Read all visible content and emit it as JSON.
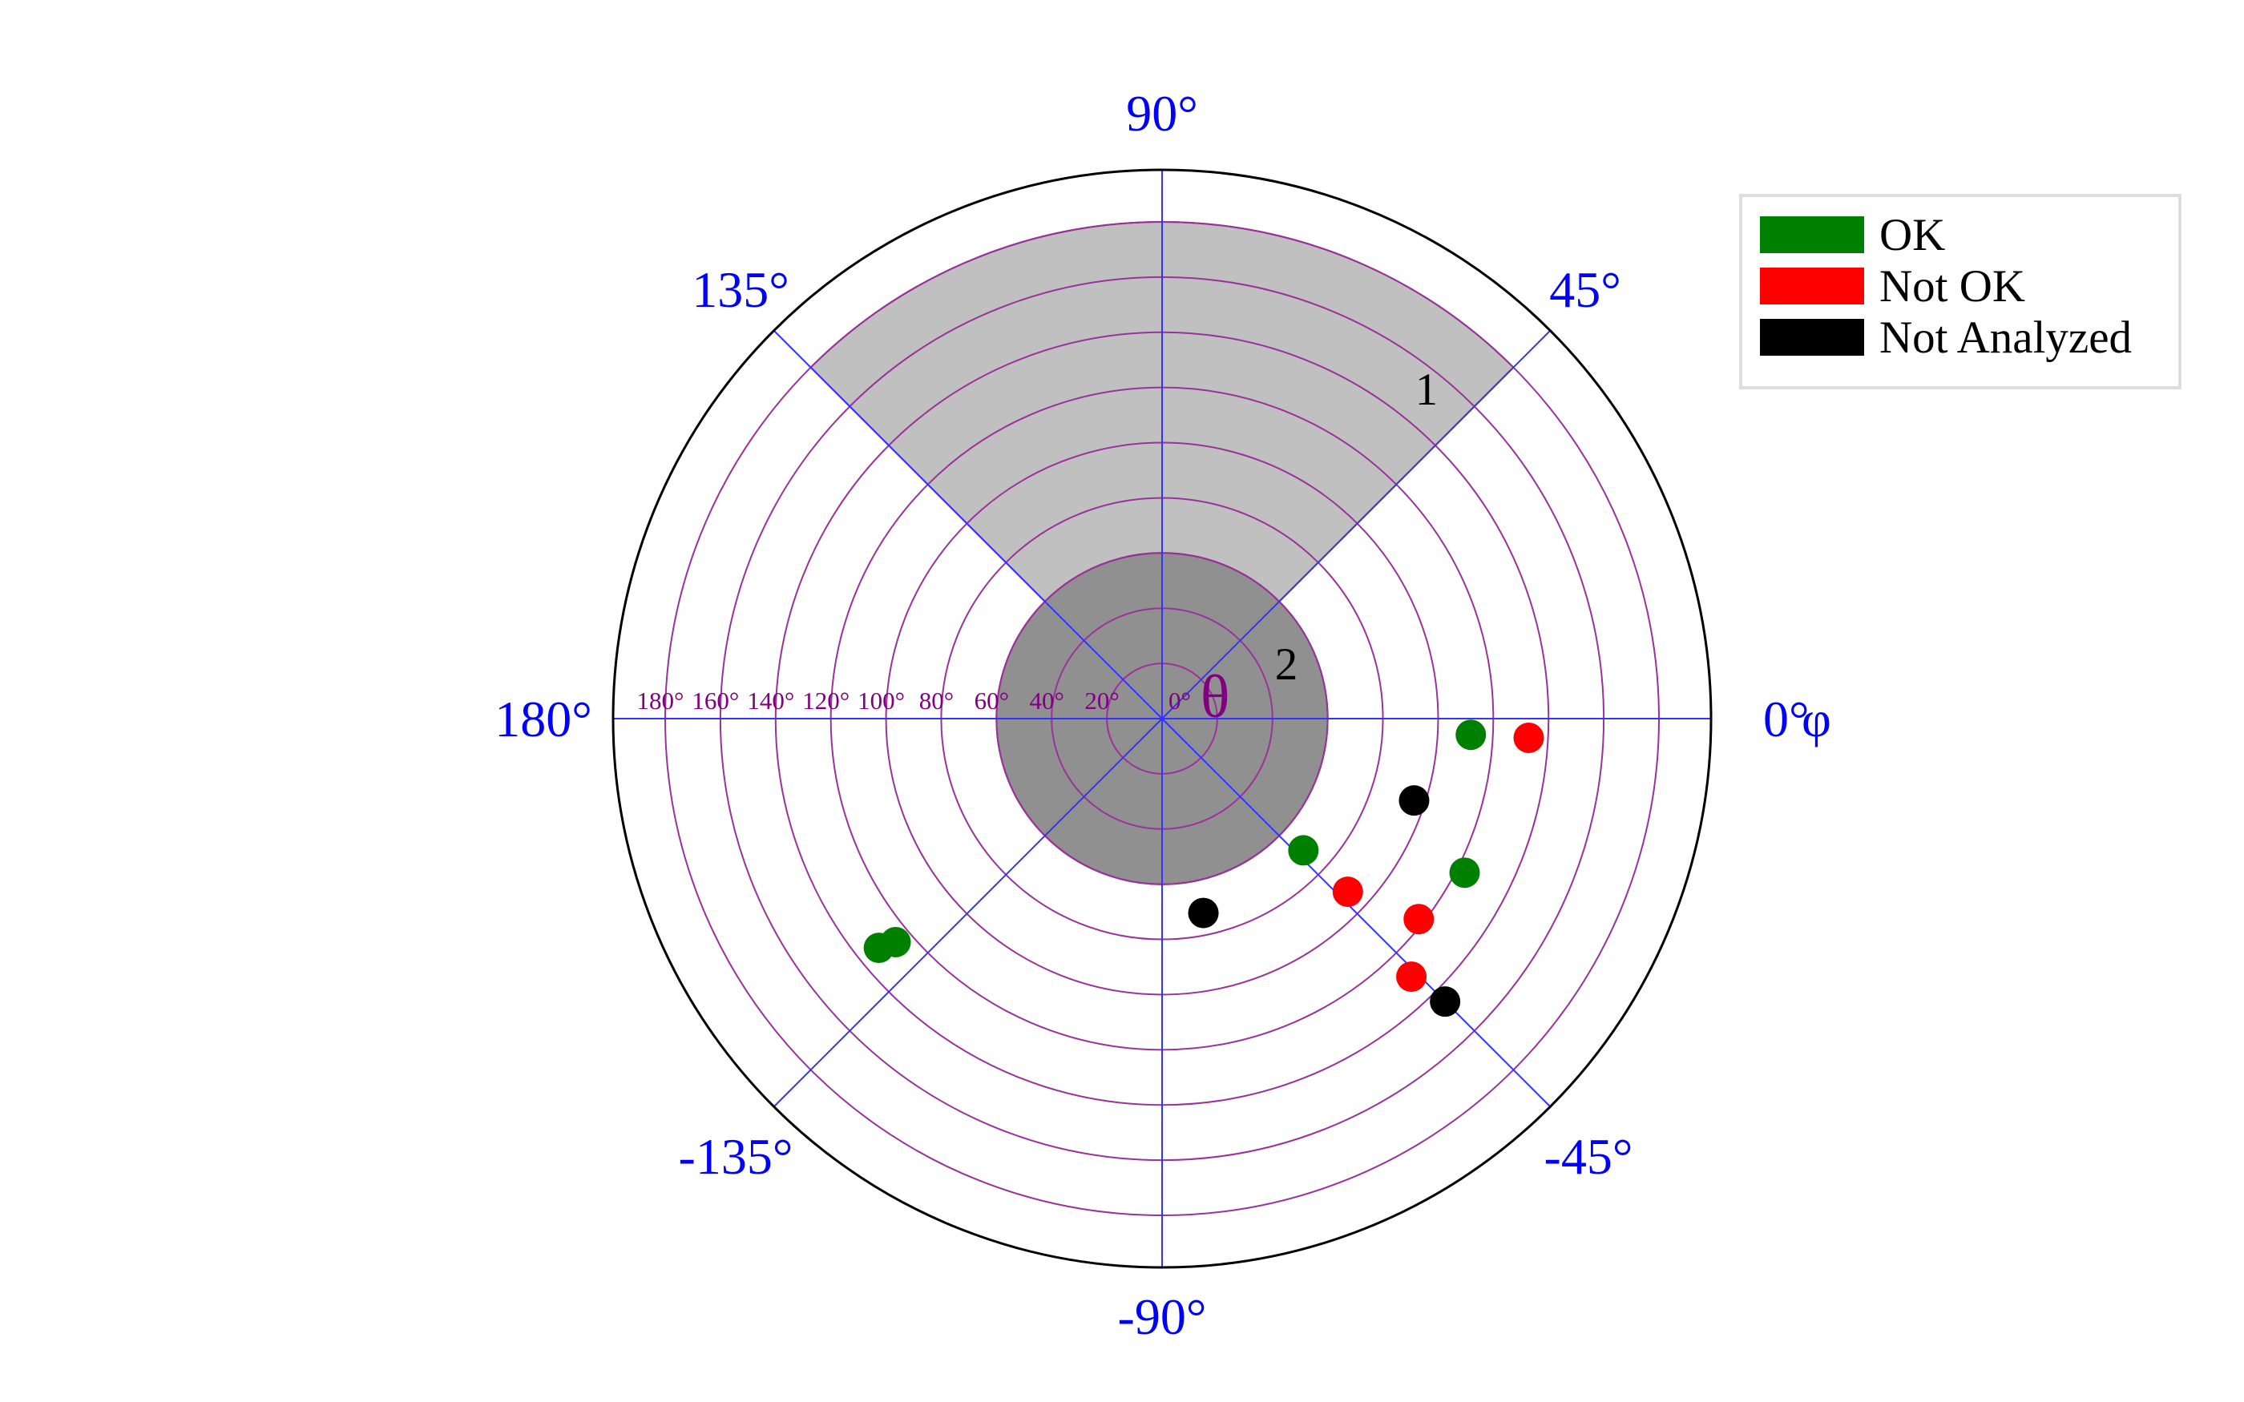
{
  "chart_data": {
    "type": "scatter",
    "projection": "polar",
    "angular_axis": {
      "symbol": "φ",
      "tick_values": [
        0,
        45,
        90,
        135,
        180,
        -135,
        -90,
        -45
      ],
      "tick_labels": [
        "0°",
        "45°",
        "90°",
        "135°",
        "180°",
        "-135°",
        "-90°",
        "-45°"
      ],
      "color": "#0000ff"
    },
    "radial_axis": {
      "symbol": "θ",
      "range": [
        0,
        180
      ],
      "tick_values": [
        0,
        20,
        40,
        60,
        80,
        100,
        120,
        140,
        160,
        180
      ],
      "tick_labels": [
        "0°",
        "20°",
        "40°",
        "60°",
        "80°",
        "100°",
        "120°",
        "140°",
        "160°",
        "180°"
      ],
      "color": "#800080"
    },
    "grid": true,
    "regions": [
      {
        "label": "1",
        "phi_range": [
          45,
          135
        ],
        "theta_range": [
          0,
          180
        ],
        "color": "#c0c0c0"
      },
      {
        "label": "2",
        "phi_range": [
          -180,
          180
        ],
        "theta_range": [
          0,
          60
        ],
        "color": "#909090"
      }
    ],
    "legend_position": "top-right",
    "series": [
      {
        "name": "OK",
        "color": "#008000",
        "points": [
          {
            "phi": -3,
            "theta": 112
          },
          {
            "phi": -27,
            "theta": 123
          },
          {
            "phi": -43,
            "theta": 70
          },
          {
            "phi": -140,
            "theta": 126
          },
          {
            "phi": -141,
            "theta": 132
          }
        ]
      },
      {
        "name": "Not OK",
        "color": "#ff0000",
        "points": [
          {
            "phi": -3,
            "theta": 133
          },
          {
            "phi": -43,
            "theta": 92
          },
          {
            "phi": -38,
            "theta": 118
          },
          {
            "phi": -46,
            "theta": 130
          }
        ]
      },
      {
        "name": "Not Analyzed",
        "color": "#000000",
        "points": [
          {
            "phi": -18,
            "theta": 96
          },
          {
            "phi": -78,
            "theta": 72
          },
          {
            "phi": -45,
            "theta": 145
          }
        ]
      }
    ]
  }
}
